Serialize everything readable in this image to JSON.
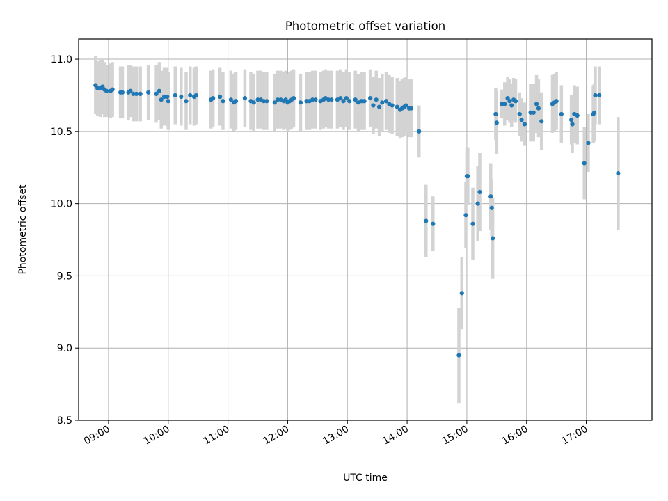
{
  "chart_data": {
    "type": "scatter",
    "title": "Photometric offset variation",
    "xlabel": "UTC time",
    "ylabel": "Photometric offset",
    "xlim": [
      "08:30",
      "18:06"
    ],
    "ylim": [
      8.5,
      11.14
    ],
    "grid": true,
    "x_ticks": [
      "09:00",
      "10:00",
      "11:00",
      "12:00",
      "13:00",
      "14:00",
      "15:00",
      "16:00",
      "17:00"
    ],
    "y_ticks": [
      "8.5",
      "9.0",
      "9.5",
      "10.0",
      "10.5",
      "11.0"
    ],
    "colors": {
      "point": "#1f77b4",
      "errorbar": "#d3d3d3",
      "grid": "#b0b0b0"
    },
    "series": [
      {
        "points": [
          [
            "08:47",
            10.82,
            0.2
          ],
          [
            "08:49",
            10.8,
            0.19
          ],
          [
            "08:52",
            10.8,
            0.2
          ],
          [
            "08:54",
            10.81,
            0.19
          ],
          [
            "08:56",
            10.79,
            0.19
          ],
          [
            "08:58",
            10.78,
            0.18
          ],
          [
            "09:02",
            10.78,
            0.19
          ],
          [
            "09:04",
            10.79,
            0.19
          ],
          [
            "09:12",
            10.77,
            0.18
          ],
          [
            "09:14",
            10.77,
            0.18
          ],
          [
            "09:20",
            10.77,
            0.19
          ],
          [
            "09:22",
            10.78,
            0.18
          ],
          [
            "09:25",
            10.76,
            0.19
          ],
          [
            "09:28",
            10.76,
            0.19
          ],
          [
            "09:32",
            10.76,
            0.19
          ],
          [
            "09:40",
            10.77,
            0.19
          ],
          [
            "09:48",
            10.76,
            0.2
          ],
          [
            "09:51",
            10.78,
            0.2
          ],
          [
            "09:53",
            10.72,
            0.2
          ],
          [
            "09:56",
            10.74,
            0.2
          ],
          [
            "09:59",
            10.74,
            0.2
          ],
          [
            "10:00",
            10.71,
            0.2
          ],
          [
            "10:07",
            10.75,
            0.2
          ],
          [
            "10:13",
            10.74,
            0.2
          ],
          [
            "10:18",
            10.71,
            0.2
          ],
          [
            "10:22",
            10.75,
            0.2
          ],
          [
            "10:26",
            10.74,
            0.2
          ],
          [
            "10:28",
            10.75,
            0.2
          ],
          [
            "10:43",
            10.72,
            0.2
          ],
          [
            "10:45",
            10.73,
            0.2
          ],
          [
            "10:52",
            10.74,
            0.2
          ],
          [
            "10:55",
            10.71,
            0.2
          ],
          [
            "11:03",
            10.72,
            0.2
          ],
          [
            "11:06",
            10.7,
            0.2
          ],
          [
            "11:08",
            10.71,
            0.2
          ],
          [
            "11:17",
            10.73,
            0.2
          ],
          [
            "11:23",
            10.71,
            0.2
          ],
          [
            "11:26",
            10.7,
            0.2
          ],
          [
            "11:30",
            10.72,
            0.2
          ],
          [
            "11:33",
            10.72,
            0.2
          ],
          [
            "11:36",
            10.71,
            0.2
          ],
          [
            "11:39",
            10.71,
            0.2
          ],
          [
            "11:47",
            10.7,
            0.2
          ],
          [
            "11:50",
            10.72,
            0.2
          ],
          [
            "11:53",
            10.72,
            0.2
          ],
          [
            "11:56",
            10.71,
            0.2
          ],
          [
            "11:58",
            10.72,
            0.2
          ],
          [
            "12:00",
            10.7,
            0.2
          ],
          [
            "12:02",
            10.71,
            0.2
          ],
          [
            "12:04",
            10.72,
            0.2
          ],
          [
            "12:06",
            10.73,
            0.2
          ],
          [
            "12:13",
            10.7,
            0.2
          ],
          [
            "12:19",
            10.71,
            0.2
          ],
          [
            "12:22",
            10.71,
            0.2
          ],
          [
            "12:25",
            10.72,
            0.2
          ],
          [
            "12:28",
            10.72,
            0.2
          ],
          [
            "12:33",
            10.71,
            0.2
          ],
          [
            "12:36",
            10.72,
            0.2
          ],
          [
            "12:38",
            10.73,
            0.2
          ],
          [
            "12:41",
            10.72,
            0.2
          ],
          [
            "12:44",
            10.72,
            0.2
          ],
          [
            "12:50",
            10.72,
            0.2
          ],
          [
            "12:53",
            10.73,
            0.2
          ],
          [
            "12:56",
            10.71,
            0.2
          ],
          [
            "12:59",
            10.73,
            0.2
          ],
          [
            "13:02",
            10.71,
            0.2
          ],
          [
            "13:08",
            10.72,
            0.2
          ],
          [
            "13:11",
            10.7,
            0.2
          ],
          [
            "13:14",
            10.71,
            0.2
          ],
          [
            "13:17",
            10.71,
            0.2
          ],
          [
            "13:23",
            10.73,
            0.2
          ],
          [
            "13:26",
            10.68,
            0.2
          ],
          [
            "13:29",
            10.72,
            0.2
          ],
          [
            "13:32",
            10.67,
            0.2
          ],
          [
            "13:35",
            10.7,
            0.2
          ],
          [
            "13:39",
            10.71,
            0.2
          ],
          [
            "13:42",
            10.69,
            0.2
          ],
          [
            "13:45",
            10.68,
            0.2
          ],
          [
            "13:50",
            10.67,
            0.2
          ],
          [
            "13:53",
            10.65,
            0.2
          ],
          [
            "13:55",
            10.66,
            0.2
          ],
          [
            "13:57",
            10.67,
            0.2
          ],
          [
            "13:59",
            10.68,
            0.2
          ],
          [
            "14:02",
            10.66,
            0.2
          ],
          [
            "14:04",
            10.66,
            0.2
          ],
          [
            "14:12",
            10.5,
            0.18
          ],
          [
            "14:19",
            9.88,
            0.25
          ],
          [
            "14:26",
            9.86,
            0.19
          ],
          [
            "14:52",
            8.95,
            0.33
          ],
          [
            "14:55",
            9.38,
            0.25
          ],
          [
            "14:59",
            9.92,
            0.23
          ],
          [
            "15:00",
            10.19,
            0.2
          ],
          [
            "15:01",
            10.19,
            0.2
          ],
          [
            "15:06",
            9.86,
            0.25
          ],
          [
            "15:11",
            10.0,
            0.26
          ],
          [
            "15:13",
            10.08,
            0.27
          ],
          [
            "15:24",
            10.05,
            0.23
          ],
          [
            "15:25",
            9.97,
            0.2
          ],
          [
            "15:26",
            9.76,
            0.28
          ],
          [
            "15:29",
            10.62,
            0.18
          ],
          [
            "15:30",
            10.56,
            0.22
          ],
          [
            "15:35",
            10.69,
            0.1
          ],
          [
            "15:38",
            10.69,
            0.15
          ],
          [
            "15:41",
            10.73,
            0.15
          ],
          [
            "15:43",
            10.71,
            0.15
          ],
          [
            "15:45",
            10.68,
            0.15
          ],
          [
            "15:47",
            10.72,
            0.15
          ],
          [
            "15:49",
            10.71,
            0.15
          ],
          [
            "15:53",
            10.62,
            0.15
          ],
          [
            "15:55",
            10.58,
            0.15
          ],
          [
            "15:58",
            10.55,
            0.15
          ],
          [
            "16:04",
            10.63,
            0.2
          ],
          [
            "16:07",
            10.63,
            0.2
          ],
          [
            "16:10",
            10.69,
            0.2
          ],
          [
            "16:12",
            10.66,
            0.2
          ],
          [
            "16:15",
            10.57,
            0.2
          ],
          [
            "16:26",
            10.69,
            0.2
          ],
          [
            "16:28",
            10.7,
            0.2
          ],
          [
            "16:30",
            10.71,
            0.2
          ],
          [
            "16:35",
            10.62,
            0.2
          ],
          [
            "16:45",
            10.58,
            0.17
          ],
          [
            "16:46",
            10.55,
            0.2
          ],
          [
            "16:48",
            10.62,
            0.2
          ],
          [
            "16:51",
            10.61,
            0.2
          ],
          [
            "16:58",
            10.28,
            0.25
          ],
          [
            "17:02",
            10.42,
            0.2
          ],
          [
            "17:07",
            10.62,
            0.2
          ],
          [
            "17:08",
            10.63,
            0.2
          ],
          [
            "17:09",
            10.75,
            0.2
          ],
          [
            "17:13",
            10.75,
            0.2
          ],
          [
            "17:32",
            10.21,
            0.39
          ]
        ]
      }
    ]
  }
}
